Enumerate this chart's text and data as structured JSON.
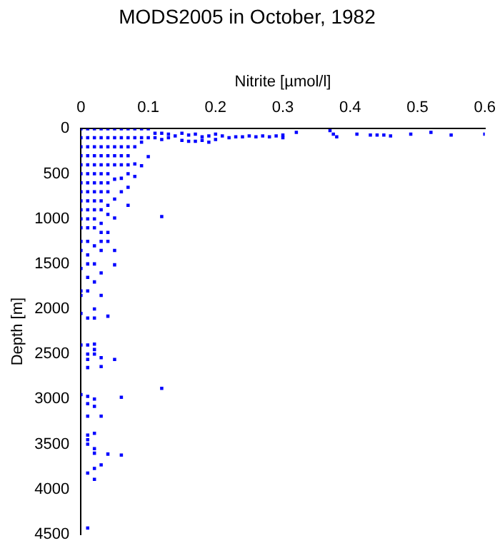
{
  "chart_data": {
    "type": "scatter",
    "title": "MODS2005 in October, 1982",
    "xlabel": "Nitrite [µmol/l]",
    "ylabel": "Depth [m]",
    "color": "#0000ff",
    "marker": "square",
    "grid": false,
    "legend": false,
    "x": [
      0,
      0,
      0,
      0,
      0,
      0,
      0,
      0,
      0,
      0,
      0,
      0,
      0,
      0,
      0,
      0,
      0,
      0,
      0,
      0,
      0.01,
      0.01,
      0.01,
      0.01,
      0.01,
      0.01,
      0.01,
      0.01,
      0.01,
      0.01,
      0.01,
      0.01,
      0.01,
      0.01,
      0.01,
      0.01,
      0.01,
      0.01,
      0.01,
      0.01,
      0.01,
      0.01,
      0.01,
      0.01,
      0.01,
      0.01,
      0.01,
      0.01,
      0.01,
      0.01,
      0.02,
      0.02,
      0.02,
      0.02,
      0.02,
      0.02,
      0.02,
      0.02,
      0.02,
      0.02,
      0.02,
      0.02,
      0.02,
      0.02,
      0.02,
      0.02,
      0.02,
      0.02,
      0.02,
      0.02,
      0.02,
      0.02,
      0.02,
      0.02,
      0.02,
      0.02,
      0.02,
      0.03,
      0.03,
      0.03,
      0.03,
      0.03,
      0.03,
      0.03,
      0.03,
      0.03,
      0.03,
      0.03,
      0.03,
      0.03,
      0.03,
      0.03,
      0.03,
      0.03,
      0.03,
      0.03,
      0.03,
      0.04,
      0.04,
      0.04,
      0.04,
      0.04,
      0.04,
      0.04,
      0.04,
      0.04,
      0.04,
      0.04,
      0.04,
      0.04,
      0.04,
      0.05,
      0.05,
      0.05,
      0.05,
      0.05,
      0.05,
      0.05,
      0.05,
      0.05,
      0.05,
      0.05,
      0.06,
      0.06,
      0.06,
      0.06,
      0.06,
      0.06,
      0.06,
      0.06,
      0.06,
      0.07,
      0.07,
      0.07,
      0.07,
      0.07,
      0.07,
      0.07,
      0.07,
      0.08,
      0.08,
      0.08,
      0.08,
      0.08,
      0.09,
      0.09,
      0.09,
      0.09,
      0.1,
      0.1,
      0.1,
      0.11,
      0.11,
      0.12,
      0.12,
      0.12,
      0.12,
      0.13,
      0.13,
      0.14,
      0.15,
      0.15,
      0.16,
      0.16,
      0.17,
      0.17,
      0.18,
      0.18,
      0.19,
      0.19,
      0.2,
      0.2,
      0.21,
      0.22,
      0.23,
      0.24,
      0.25,
      0.26,
      0.27,
      0.28,
      0.29,
      0.3,
      0.3,
      0.32,
      0.37,
      0.375,
      0.38,
      0.41,
      0.43,
      0.44,
      0.45,
      0.46,
      0.49,
      0.52,
      0.55,
      0.6
    ],
    "values": [
      0,
      100,
      200,
      300,
      400,
      500,
      600,
      700,
      800,
      900,
      1000,
      1100,
      1250,
      1350,
      1550,
      1800,
      1850,
      2050,
      2400,
      2950,
      0,
      100,
      200,
      300,
      400,
      500,
      600,
      700,
      800,
      900,
      1000,
      1100,
      1250,
      1400,
      1500,
      1650,
      1800,
      2100,
      2400,
      2500,
      2560,
      2650,
      2970,
      3050,
      3190,
      3400,
      3450,
      3500,
      3820,
      4430,
      0,
      100,
      200,
      300,
      400,
      500,
      600,
      700,
      800,
      900,
      1000,
      1100,
      1300,
      1500,
      1700,
      2000,
      2100,
      2390,
      2450,
      2500,
      3000,
      3080,
      3380,
      3550,
      3600,
      3770,
      3890,
      0,
      100,
      200,
      300,
      400,
      500,
      600,
      700,
      800,
      900,
      1050,
      1150,
      1250,
      1350,
      1600,
      1850,
      2540,
      2640,
      3190,
      3730,
      0,
      100,
      200,
      300,
      400,
      500,
      600,
      700,
      850,
      950,
      1150,
      1250,
      2080,
      3610,
      0,
      100,
      200,
      300,
      400,
      560,
      780,
      990,
      1350,
      1510,
      2560,
      0,
      100,
      200,
      300,
      400,
      550,
      700,
      2980,
      3620,
      0,
      100,
      200,
      300,
      400,
      500,
      650,
      850,
      0,
      100,
      200,
      390,
      530,
      0,
      100,
      150,
      410,
      0,
      100,
      310,
      50,
      100,
      50,
      120,
      975,
      2880,
      60,
      100,
      80,
      50,
      130,
      70,
      140,
      60,
      140,
      90,
      130,
      80,
      150,
      60,
      120,
      80,
      100,
      90,
      90,
      80,
      90,
      80,
      90,
      80,
      70,
      100,
      40,
      20,
      60,
      90,
      60,
      70,
      70,
      70,
      80,
      60,
      40,
      70,
      60
    ],
    "xlim": [
      0,
      0.6
    ],
    "xticks": [
      0,
      0.1,
      0.2,
      0.3,
      0.4,
      0.5,
      0.6
    ],
    "ylim": [
      4500,
      0
    ],
    "yticks": [
      0,
      500,
      1000,
      1500,
      2000,
      2500,
      3000,
      3500,
      4000,
      4500
    ]
  }
}
